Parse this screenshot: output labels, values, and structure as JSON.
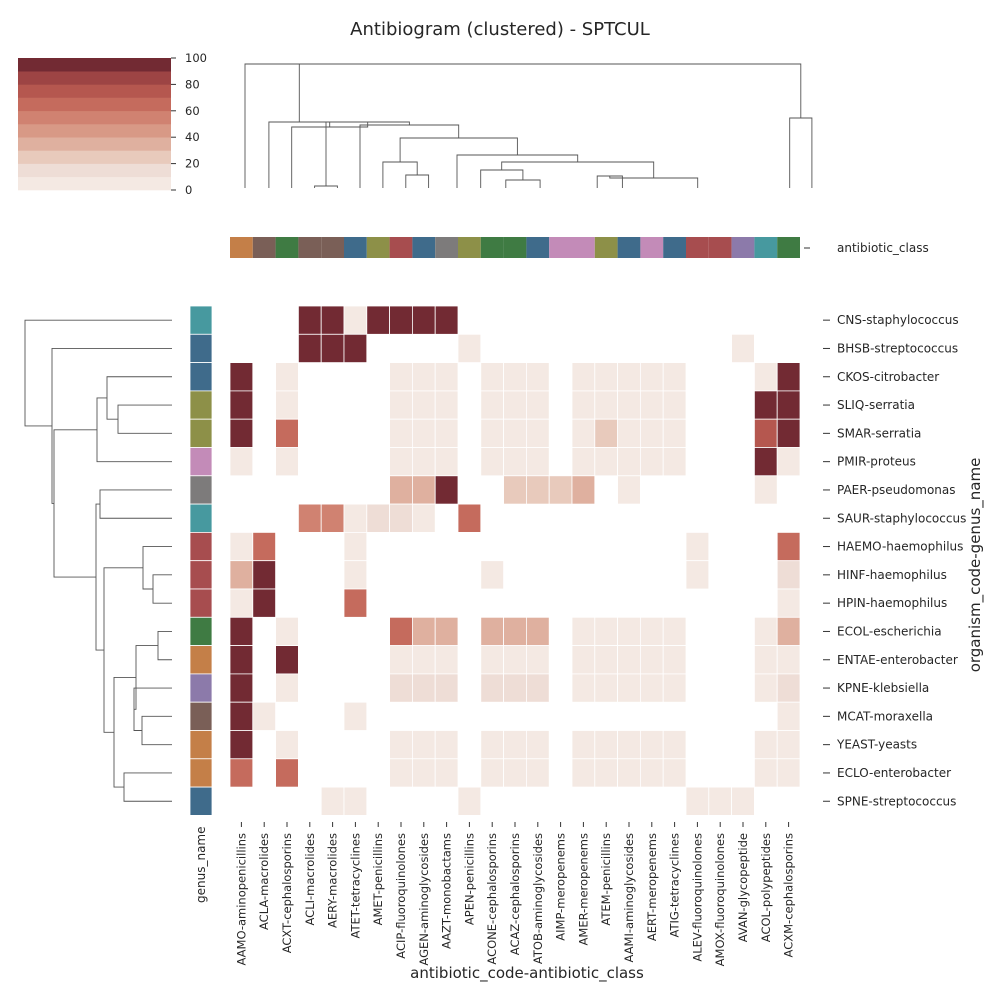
{
  "chart_data": {
    "type": "heatmap",
    "title": "Antibiogram (clustered) - SPTCUL",
    "xlabel": "antibiotic_code-antibiotic_class",
    "ylabel": "organism_code-genus_name",
    "row_colors_label": "genus_name",
    "col_colors_label": "antibiotic_class",
    "colorbar": {
      "ticks": [
        0,
        20,
        40,
        60,
        80,
        100
      ],
      "range": [
        0,
        100
      ],
      "levels": 10
    },
    "palette": [
      "#f4e9e3",
      "#eeddd6",
      "#e8cabc",
      "#dfb09f",
      "#d89986",
      "#d08271",
      "#c56b5d",
      "#b5574f",
      "#9d4444",
      "#8b3a3f",
      "#722a33"
    ],
    "columns": [
      {
        "label": "AAMO-aminopenicillins",
        "color": "#c47f48"
      },
      {
        "label": "ACLA-macrolides",
        "color": "#7a5f57"
      },
      {
        "label": "ACXT-cephalosporins",
        "color": "#3f7b43"
      },
      {
        "label": "ACLI-macrolides",
        "color": "#7a5f57"
      },
      {
        "label": "AERY-macrolides",
        "color": "#7a5f57"
      },
      {
        "label": "ATET-tetracyclines",
        "color": "#3f6b8b"
      },
      {
        "label": "AMET-penicillins",
        "color": "#8d9048"
      },
      {
        "label": "ACIP-fluoroquinolones",
        "color": "#a74d4f"
      },
      {
        "label": "AGEN-aminoglycosides",
        "color": "#3f6b8b"
      },
      {
        "label": "AAZT-monobactams",
        "color": "#7d7b7b"
      },
      {
        "label": "APEN-penicillins",
        "color": "#8d9048"
      },
      {
        "label": "ACONE-cephalosporins",
        "color": "#3f7b43"
      },
      {
        "label": "ACAZ-cephalosporins",
        "color": "#3f7b43"
      },
      {
        "label": "ATOB-aminoglycosides",
        "color": "#3f6b8b"
      },
      {
        "label": "AIMP-meropenems",
        "color": "#c38bb8"
      },
      {
        "label": "AMER-meropenems",
        "color": "#c38bb8"
      },
      {
        "label": "ATEM-penicillins",
        "color": "#8d9048"
      },
      {
        "label": "AAMI-aminoglycosides",
        "color": "#3f6b8b"
      },
      {
        "label": "AERT-meropenems",
        "color": "#c38bb8"
      },
      {
        "label": "ATIG-tetracyclines",
        "color": "#3f6b8b"
      },
      {
        "label": "ALEV-fluoroquinolones",
        "color": "#a74d4f"
      },
      {
        "label": "AMOX-fluoroquinolones",
        "color": "#a74d4f"
      },
      {
        "label": "AVAN-glycopeptide",
        "color": "#8c7aaa"
      },
      {
        "label": "ACOL-polypeptides",
        "color": "#47999f"
      },
      {
        "label": "ACXM-cephalosporins",
        "color": "#3f7b43"
      }
    ],
    "rows": [
      {
        "label": "CNS-staphylococcus",
        "color": "#47999f",
        "values": [
          null,
          null,
          null,
          100,
          100,
          5,
          100,
          100,
          100,
          100,
          null,
          null,
          null,
          null,
          null,
          null,
          null,
          null,
          null,
          null,
          null,
          null,
          null,
          null,
          null
        ]
      },
      {
        "label": "BHSB-streptococcus",
        "color": "#3f6b8b",
        "values": [
          null,
          null,
          null,
          100,
          100,
          100,
          null,
          null,
          null,
          null,
          5,
          null,
          null,
          null,
          null,
          null,
          null,
          null,
          null,
          null,
          null,
          null,
          5,
          null,
          null
        ]
      },
      {
        "label": "CKOS-citrobacter",
        "color": "#3f6b8b",
        "values": [
          100,
          null,
          5,
          null,
          null,
          null,
          null,
          5,
          5,
          5,
          null,
          5,
          5,
          5,
          null,
          5,
          5,
          5,
          5,
          5,
          null,
          null,
          null,
          5,
          100
        ]
      },
      {
        "label": "SLIQ-serratia",
        "color": "#8d9048",
        "values": [
          100,
          null,
          5,
          null,
          null,
          null,
          null,
          5,
          5,
          5,
          null,
          5,
          5,
          5,
          null,
          5,
          5,
          5,
          5,
          5,
          null,
          null,
          null,
          100,
          100
        ]
      },
      {
        "label": "SMAR-serratia",
        "color": "#8d9048",
        "values": [
          100,
          null,
          65,
          null,
          null,
          null,
          null,
          5,
          5,
          5,
          null,
          5,
          5,
          5,
          null,
          5,
          25,
          5,
          5,
          5,
          null,
          null,
          null,
          70,
          100
        ]
      },
      {
        "label": "PMIR-proteus",
        "color": "#c38bb8",
        "values": [
          5,
          null,
          5,
          null,
          null,
          null,
          null,
          5,
          5,
          5,
          null,
          5,
          5,
          5,
          null,
          5,
          5,
          5,
          5,
          5,
          null,
          null,
          null,
          100,
          5
        ]
      },
      {
        "label": "PAER-pseudomonas",
        "color": "#7d7b7b",
        "values": [
          null,
          null,
          null,
          null,
          null,
          null,
          null,
          30,
          30,
          100,
          null,
          null,
          25,
          25,
          25,
          30,
          null,
          5,
          null,
          null,
          null,
          null,
          null,
          5,
          null
        ]
      },
      {
        "label": "SAUR-staphylococcus",
        "color": "#47999f",
        "values": [
          null,
          null,
          null,
          50,
          55,
          5,
          10,
          15,
          5,
          null,
          60,
          null,
          null,
          null,
          null,
          null,
          null,
          null,
          null,
          null,
          null,
          null,
          null,
          null,
          null
        ]
      },
      {
        "label": "HAEMO-haemophilus",
        "color": "#a74d4f",
        "values": [
          5,
          60,
          null,
          null,
          null,
          5,
          null,
          null,
          null,
          null,
          null,
          null,
          null,
          null,
          null,
          null,
          null,
          null,
          null,
          null,
          5,
          null,
          null,
          null,
          60
        ]
      },
      {
        "label": "HINF-haemophilus",
        "color": "#a74d4f",
        "values": [
          30,
          100,
          null,
          null,
          null,
          5,
          null,
          null,
          null,
          null,
          null,
          5,
          null,
          null,
          null,
          null,
          null,
          null,
          null,
          null,
          5,
          null,
          null,
          null,
          10
        ]
      },
      {
        "label": "HPIN-haemophilus",
        "color": "#a74d4f",
        "values": [
          5,
          100,
          null,
          null,
          null,
          60,
          null,
          null,
          null,
          null,
          null,
          null,
          null,
          null,
          null,
          null,
          null,
          null,
          null,
          null,
          null,
          null,
          null,
          null,
          5
        ]
      },
      {
        "label": "ECOL-escherichia",
        "color": "#3f7b43",
        "values": [
          100,
          null,
          5,
          null,
          null,
          null,
          null,
          65,
          30,
          30,
          null,
          30,
          30,
          30,
          null,
          5,
          5,
          5,
          5,
          5,
          null,
          null,
          null,
          5,
          30
        ]
      },
      {
        "label": "ENTAE-enterobacter",
        "color": "#c47f48",
        "values": [
          100,
          null,
          100,
          null,
          null,
          null,
          null,
          5,
          5,
          5,
          null,
          5,
          5,
          5,
          null,
          5,
          5,
          5,
          5,
          5,
          null,
          null,
          null,
          5,
          5
        ]
      },
      {
        "label": "KPNE-klebsiella",
        "color": "#8c7aaa",
        "values": [
          100,
          null,
          5,
          null,
          null,
          null,
          null,
          12,
          12,
          12,
          null,
          12,
          12,
          12,
          null,
          5,
          5,
          5,
          5,
          5,
          null,
          null,
          null,
          5,
          12
        ]
      },
      {
        "label": "MCAT-moraxella",
        "color": "#7a5f57",
        "values": [
          100,
          5,
          null,
          null,
          null,
          5,
          null,
          null,
          null,
          null,
          null,
          null,
          null,
          null,
          null,
          null,
          null,
          null,
          null,
          null,
          null,
          null,
          null,
          null,
          5
        ]
      },
      {
        "label": "YEAST-yeasts",
        "color": "#c47f48",
        "values": [
          100,
          null,
          5,
          null,
          null,
          null,
          null,
          5,
          5,
          5,
          null,
          5,
          5,
          5,
          null,
          5,
          5,
          5,
          5,
          5,
          null,
          null,
          null,
          5,
          5
        ]
      },
      {
        "label": "ECLO-enterobacter",
        "color": "#c47f48",
        "values": [
          60,
          null,
          60,
          null,
          null,
          null,
          null,
          5,
          5,
          5,
          null,
          5,
          5,
          5,
          null,
          5,
          5,
          5,
          5,
          5,
          null,
          null,
          null,
          5,
          5
        ]
      },
      {
        "label": "SPNE-streptococcus",
        "color": "#3f6b8b",
        "values": [
          null,
          null,
          null,
          null,
          5,
          5,
          null,
          null,
          null,
          null,
          5,
          null,
          null,
          null,
          null,
          null,
          null,
          null,
          null,
          null,
          5,
          5,
          5,
          null,
          null
        ]
      }
    ]
  }
}
